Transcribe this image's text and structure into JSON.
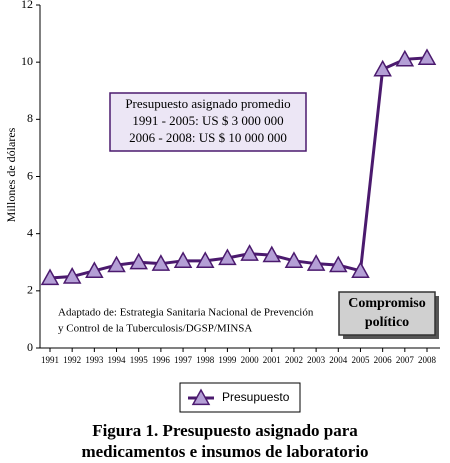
{
  "chart_data": {
    "type": "line",
    "y_label": "Millones de dólares",
    "categories": [
      "1991",
      "1992",
      "1993",
      "1994",
      "1995",
      "1996",
      "1997",
      "1998",
      "1999",
      "2000",
      "2001",
      "2002",
      "2003",
      "2004",
      "2005",
      "2006",
      "2007",
      "2008"
    ],
    "series": [
      {
        "name": "Presupuesto",
        "color": "#4b1a6e",
        "marker_color": "#b49fd6",
        "values": [
          2.45,
          2.5,
          2.7,
          2.9,
          3.0,
          2.95,
          3.05,
          3.05,
          3.15,
          3.3,
          3.25,
          3.05,
          2.95,
          2.9,
          2.7,
          9.75,
          10.1,
          10.15
        ]
      }
    ],
    "ylim": [
      0,
      12
    ],
    "yticks": [
      0,
      2,
      4,
      6,
      8,
      10,
      12
    ],
    "box_annotation": [
      "Presupuesto asignado promedio",
      "1991 - 2005: US $ 3 000 000",
      "2006 - 2008: US $ 10 000 000"
    ],
    "source_note": [
      "Adaptado de:  Estrategia Sanitaria Nacional de Prevención",
      "y Control de  la Tuberculosis/DGSP/MINSA"
    ],
    "callout": [
      "Compromiso",
      "político"
    ],
    "caption": [
      "Figura 1. Presupuesto asignado para",
      "medicamentos e insumos de laboratorio"
    ]
  }
}
